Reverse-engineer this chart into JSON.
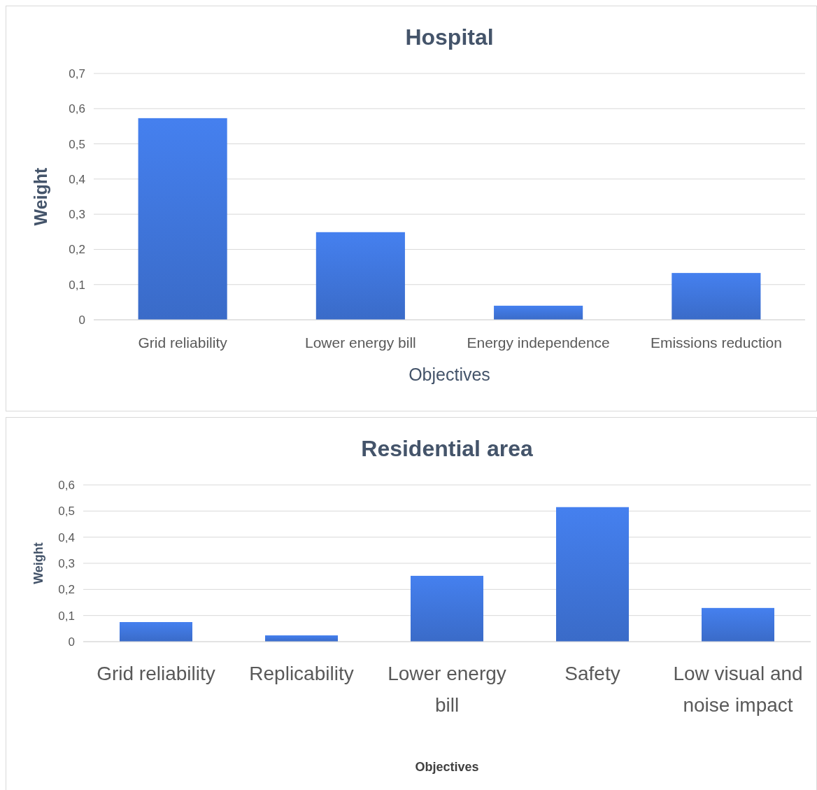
{
  "chart_data": [
    {
      "type": "bar",
      "title": "Hospital",
      "xlabel": "Objectives",
      "ylabel": "Weight",
      "categories": [
        "Grid reliability",
        "Lower energy bill",
        "Energy independence",
        "Emissions reduction"
      ],
      "values": [
        0.573,
        0.249,
        0.04,
        0.133
      ],
      "color": "#3a6bc8",
      "ylim": [
        0,
        0.7
      ],
      "yticks": [
        0,
        {
          "value": 0.1,
          "label": "0,1"
        },
        {
          "value": 0.2,
          "label": "0,2"
        },
        {
          "value": 0.3,
          "label": "0,3"
        },
        {
          "value": 0.4,
          "label": "0,4"
        },
        {
          "value": 0.5,
          "label": "0,5"
        },
        {
          "value": 0.6,
          "label": "0,6"
        },
        {
          "value": 0.7,
          "label": "0,7"
        }
      ],
      "grid": "y"
    },
    {
      "type": "bar",
      "title": "Residential area",
      "xlabel": "Objectives",
      "ylabel": "Weight",
      "categories": [
        "Grid reliability",
        "Replicability",
        "Lower energy bill",
        "Safety",
        "Low visual and noise impact"
      ],
      "values": [
        0.075,
        0.024,
        0.252,
        0.515,
        0.129
      ],
      "color": "#3a6bc8",
      "ylim": [
        0,
        0.6
      ],
      "yticks": [
        0,
        {
          "value": 0.1,
          "label": "0,1"
        },
        {
          "value": 0.2,
          "label": "0,2"
        },
        {
          "value": 0.3,
          "label": "0,3"
        },
        {
          "value": 0.4,
          "label": "0,4"
        },
        {
          "value": 0.5,
          "label": "0,5"
        },
        {
          "value": 0.6,
          "label": "0,6"
        }
      ],
      "grid": "y"
    }
  ]
}
